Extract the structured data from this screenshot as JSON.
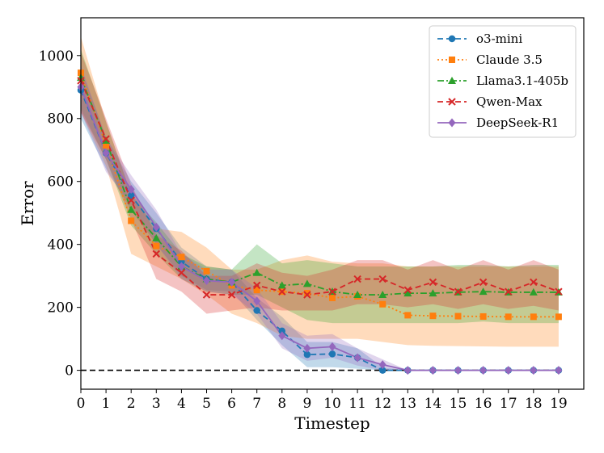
{
  "chart_data": {
    "type": "line",
    "title": "",
    "xlabel": "Timestep",
    "ylabel": "Error",
    "xlim": [
      0,
      20
    ],
    "ylim": [
      -60,
      1120
    ],
    "x_ticks": [
      0,
      1,
      2,
      3,
      4,
      5,
      6,
      7,
      8,
      9,
      10,
      11,
      12,
      13,
      14,
      15,
      16,
      17,
      18,
      19
    ],
    "y_ticks": [
      0,
      200,
      400,
      600,
      800,
      1000
    ],
    "grid": false,
    "legend_position": "top-right",
    "reference_line": {
      "y": 0,
      "style": "dashed",
      "color": "#000000"
    },
    "series": [
      {
        "name": "o3-mini",
        "color": "#1f77b4",
        "marker": "circle",
        "linestyle": "dashed",
        "x": [
          0,
          1,
          2,
          3,
          4,
          5,
          6,
          7,
          8,
          9,
          10,
          11,
          12,
          13,
          14,
          15,
          16,
          17,
          18,
          19
        ],
        "values": [
          890,
          690,
          555,
          450,
          345,
          290,
          280,
          190,
          125,
          50,
          52,
          40,
          0,
          0,
          0,
          0,
          0,
          0,
          0,
          0
        ],
        "band_lower": [
          800,
          640,
          510,
          400,
          300,
          255,
          250,
          160,
          80,
          10,
          10,
          5,
          0,
          0,
          0,
          0,
          0,
          0,
          0,
          0
        ],
        "band_upper": [
          960,
          740,
          600,
          500,
          390,
          330,
          320,
          230,
          170,
          90,
          90,
          70,
          10,
          0,
          0,
          0,
          0,
          0,
          0,
          0
        ]
      },
      {
        "name": "Claude 3.5",
        "color": "#ff7f0e",
        "marker": "square",
        "linestyle": "dotted",
        "x": [
          0,
          1,
          2,
          3,
          4,
          5,
          6,
          7,
          8,
          9,
          10,
          11,
          12,
          13,
          14,
          15,
          16,
          17,
          18,
          19
        ],
        "values": [
          945,
          715,
          475,
          395,
          360,
          315,
          270,
          255,
          250,
          245,
          230,
          235,
          210,
          175,
          173,
          172,
          171,
          170,
          170,
          170
        ],
        "band_lower": [
          820,
          650,
          370,
          330,
          290,
          240,
          180,
          150,
          110,
          100,
          100,
          100,
          90,
          80,
          78,
          77,
          76,
          75,
          75,
          75
        ],
        "band_upper": [
          1060,
          790,
          560,
          450,
          440,
          390,
          320,
          320,
          350,
          365,
          345,
          340,
          340,
          330,
          330,
          330,
          330,
          330,
          330,
          330
        ]
      },
      {
        "name": "Llama3.1-405b",
        "color": "#2ca02c",
        "marker": "triangle",
        "linestyle": "dashdot",
        "x": [
          0,
          1,
          2,
          3,
          4,
          5,
          6,
          7,
          8,
          9,
          10,
          11,
          12,
          13,
          14,
          15,
          16,
          17,
          18,
          19
        ],
        "values": [
          930,
          730,
          510,
          420,
          330,
          290,
          280,
          310,
          270,
          275,
          250,
          240,
          240,
          245,
          245,
          248,
          250,
          248,
          248,
          248
        ],
        "band_lower": [
          830,
          670,
          460,
          370,
          290,
          250,
          240,
          240,
          200,
          160,
          150,
          150,
          150,
          150,
          150,
          150,
          155,
          150,
          150,
          150
        ],
        "band_upper": [
          1020,
          790,
          560,
          470,
          370,
          330,
          320,
          400,
          340,
          350,
          340,
          330,
          330,
          330,
          330,
          335,
          335,
          330,
          335,
          335
        ]
      },
      {
        "name": "Qwen-Max",
        "color": "#d62728",
        "marker": "x",
        "linestyle": "dashed",
        "x": [
          0,
          1,
          2,
          3,
          4,
          5,
          6,
          7,
          8,
          9,
          10,
          11,
          12,
          13,
          14,
          15,
          16,
          17,
          18,
          19
        ],
        "values": [
          920,
          735,
          540,
          370,
          310,
          240,
          240,
          270,
          250,
          240,
          250,
          290,
          290,
          255,
          280,
          250,
          280,
          250,
          280,
          250
        ],
        "band_lower": [
          820,
          670,
          480,
          290,
          250,
          180,
          190,
          200,
          190,
          190,
          190,
          210,
          210,
          200,
          210,
          195,
          210,
          195,
          205,
          190
        ],
        "band_upper": [
          1010,
          800,
          590,
          430,
          380,
          300,
          300,
          340,
          310,
          300,
          320,
          350,
          350,
          320,
          350,
          320,
          350,
          320,
          350,
          320
        ]
      },
      {
        "name": "DeepSeek-R1",
        "color": "#9467bd",
        "marker": "diamond",
        "linestyle": "solid",
        "x": [
          0,
          1,
          2,
          3,
          4,
          5,
          6,
          7,
          8,
          9,
          10,
          11,
          12,
          13,
          14,
          15,
          16,
          17,
          18,
          19
        ],
        "values": [
          900,
          690,
          575,
          455,
          330,
          285,
          280,
          220,
          110,
          70,
          75,
          40,
          18,
          0,
          0,
          0,
          0,
          0,
          0,
          0
        ],
        "band_lower": [
          820,
          630,
          530,
          400,
          290,
          250,
          240,
          180,
          70,
          30,
          40,
          15,
          0,
          0,
          0,
          0,
          0,
          0,
          0,
          0
        ],
        "band_upper": [
          970,
          740,
          620,
          510,
          370,
          320,
          320,
          260,
          150,
          110,
          115,
          70,
          35,
          0,
          0,
          0,
          0,
          0,
          0,
          0
        ]
      }
    ]
  }
}
